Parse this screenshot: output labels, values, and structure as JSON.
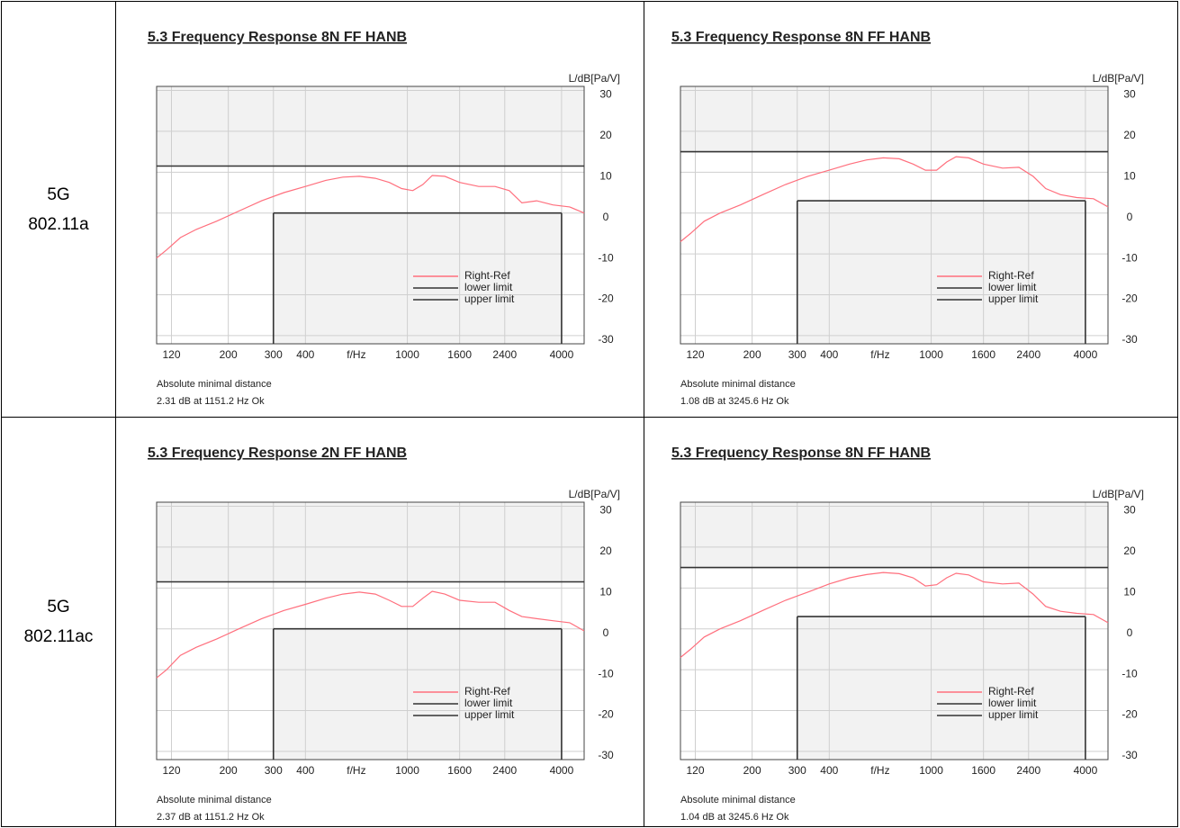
{
  "row_labels": [
    [
      "5G",
      "802.11a"
    ],
    [
      "5G",
      "802.11ac"
    ]
  ],
  "chart_data": [
    {
      "type": "line",
      "title": "5.3 Frequency Response 8N FF HANB",
      "ylabel": "L/dB[Pa/V]",
      "xlabel": "f/Hz",
      "log_x": true,
      "xlim": [
        105,
        4900
      ],
      "xticks": [
        120,
        200,
        300,
        400,
        1000,
        1600,
        2400,
        4000
      ],
      "ylim": [
        -32,
        31
      ],
      "yticks": [
        -30,
        -20,
        -10,
        0,
        10,
        20,
        30
      ],
      "grid": true,
      "notes": [
        "Absolute minimal distance",
        "2.31 dB at 1151.2 Hz Ok"
      ],
      "series": [
        {
          "name": "Right-Ref",
          "color": "#ff6f7d",
          "x": [
            105,
            115,
            130,
            150,
            180,
            220,
            270,
            330,
            400,
            480,
            560,
            650,
            750,
            850,
            950,
            1050,
            1150,
            1250,
            1400,
            1600,
            1900,
            2200,
            2500,
            2800,
            3200,
            3700,
            4300,
            4900
          ],
          "values": [
            -11,
            -9,
            -6,
            -4,
            -2,
            0.5,
            3,
            5,
            6.5,
            8,
            8.8,
            9,
            8.5,
            7.5,
            6,
            5.5,
            7,
            9.2,
            9,
            7.5,
            6.5,
            6.5,
            5.5,
            2.5,
            3,
            2,
            1.5,
            0
          ]
        },
        {
          "name": "lower limit",
          "color": "#333333",
          "x": [
            300,
            4000
          ],
          "values": [
            0,
            0
          ]
        },
        {
          "name": "upper limit",
          "color": "#333333",
          "x": [
            105,
            4900
          ],
          "values": [
            11.5,
            11.5
          ]
        }
      ]
    },
    {
      "type": "line",
      "title": "5.3 Frequency Response 8N FF HANB",
      "ylabel": "L/dB[Pa/V]",
      "xlabel": "f/Hz",
      "log_x": true,
      "xlim": [
        105,
        4900
      ],
      "xticks": [
        120,
        200,
        300,
        400,
        1000,
        1600,
        2400,
        4000
      ],
      "ylim": [
        -32,
        31
      ],
      "yticks": [
        -30,
        -20,
        -10,
        0,
        10,
        20,
        30
      ],
      "grid": true,
      "notes": [
        "Absolute minimal distance",
        "1.08 dB at 3245.6 Hz Ok"
      ],
      "series": [
        {
          "name": "Right-Ref",
          "color": "#ff6f7d",
          "x": [
            105,
            115,
            130,
            150,
            180,
            220,
            270,
            330,
            400,
            480,
            560,
            650,
            750,
            850,
            950,
            1050,
            1150,
            1250,
            1400,
            1600,
            1900,
            2200,
            2500,
            2800,
            3200,
            3700,
            4300,
            4900
          ],
          "values": [
            -7,
            -5,
            -2,
            0,
            2,
            4.5,
            7,
            9,
            10.5,
            12,
            13,
            13.5,
            13.3,
            12,
            10.5,
            10.5,
            12.5,
            13.8,
            13.5,
            12,
            11,
            11.2,
            9,
            6,
            4.5,
            3.8,
            3.5,
            1.5
          ]
        },
        {
          "name": "lower limit",
          "color": "#333333",
          "x": [
            300,
            4000
          ],
          "values": [
            3,
            3
          ]
        },
        {
          "name": "upper limit",
          "color": "#333333",
          "x": [
            105,
            4900
          ],
          "values": [
            15,
            15
          ]
        }
      ]
    },
    {
      "type": "line",
      "title": "5.3 Frequency Response 2N FF HANB",
      "ylabel": "L/dB[Pa/V]",
      "xlabel": "f/Hz",
      "log_x": true,
      "xlim": [
        105,
        4900
      ],
      "xticks": [
        120,
        200,
        300,
        400,
        1000,
        1600,
        2400,
        4000
      ],
      "ylim": [
        -32,
        31
      ],
      "yticks": [
        -30,
        -20,
        -10,
        0,
        10,
        20,
        30
      ],
      "grid": true,
      "notes": [
        "Absolute minimal distance",
        "2.37 dB at 1151.2 Hz Ok"
      ],
      "series": [
        {
          "name": "Right-Ref",
          "color": "#ff6f7d",
          "x": [
            105,
            115,
            130,
            150,
            180,
            220,
            270,
            330,
            400,
            480,
            560,
            650,
            750,
            850,
            950,
            1050,
            1150,
            1250,
            1400,
            1600,
            1900,
            2200,
            2500,
            2800,
            3200,
            3700,
            4300,
            4900
          ],
          "values": [
            -12,
            -10,
            -6.5,
            -4.5,
            -2.5,
            0,
            2.5,
            4.5,
            6,
            7.5,
            8.5,
            9,
            8.5,
            7,
            5.5,
            5.5,
            7.5,
            9.2,
            8.5,
            7,
            6.5,
            6.5,
            4.5,
            3,
            2.5,
            2,
            1.5,
            -0.5
          ]
        },
        {
          "name": "lower limit",
          "color": "#333333",
          "x": [
            300,
            4000
          ],
          "values": [
            0,
            0
          ]
        },
        {
          "name": "upper limit",
          "color": "#333333",
          "x": [
            105,
            4900
          ],
          "values": [
            11.5,
            11.5
          ]
        }
      ]
    },
    {
      "type": "line",
      "title": "5.3 Frequency Response 8N FF HANB",
      "ylabel": "L/dB[Pa/V]",
      "xlabel": "f/Hz",
      "log_x": true,
      "xlim": [
        105,
        4900
      ],
      "xticks": [
        120,
        200,
        300,
        400,
        1000,
        1600,
        2400,
        4000
      ],
      "ylim": [
        -32,
        31
      ],
      "yticks": [
        -30,
        -20,
        -10,
        0,
        10,
        20,
        30
      ],
      "grid": true,
      "notes": [
        "Absolute minimal distance",
        "1.04 dB at 3245.6 Hz Ok"
      ],
      "series": [
        {
          "name": "Right-Ref",
          "color": "#ff6f7d",
          "x": [
            105,
            115,
            130,
            150,
            180,
            220,
            270,
            330,
            400,
            480,
            560,
            650,
            750,
            850,
            950,
            1050,
            1150,
            1250,
            1400,
            1600,
            1900,
            2200,
            2500,
            2800,
            3200,
            3700,
            4300,
            4900
          ],
          "values": [
            -7,
            -5,
            -2,
            0,
            2,
            4.5,
            7,
            9,
            11,
            12.5,
            13.3,
            13.8,
            13.5,
            12.5,
            10.5,
            10.8,
            12.5,
            13.6,
            13.2,
            11.5,
            11,
            11.2,
            8.5,
            5.5,
            4.3,
            3.8,
            3.5,
            1.5
          ]
        },
        {
          "name": "lower limit",
          "color": "#333333",
          "x": [
            300,
            4000
          ],
          "values": [
            3,
            3
          ]
        },
        {
          "name": "upper limit",
          "color": "#333333",
          "x": [
            105,
            4900
          ],
          "values": [
            15,
            15
          ]
        }
      ]
    }
  ]
}
